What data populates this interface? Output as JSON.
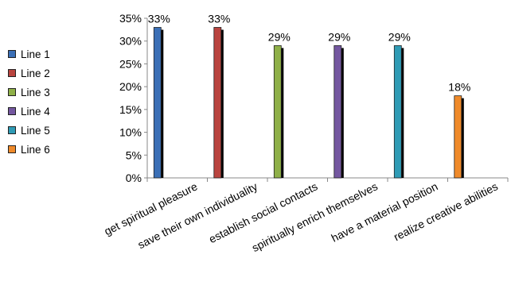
{
  "chart_data": {
    "type": "bar",
    "categories": [
      "get spiritual pleasure",
      "save their own individuality",
      "establish social contacts",
      "spiritually enrich themselves",
      "have a material position",
      "realize creative abilities"
    ],
    "series": [
      {
        "name": "Line 1",
        "color": "#3b6fb6",
        "values": [
          33,
          null,
          null,
          null,
          null,
          null
        ]
      },
      {
        "name": "Line 2",
        "color": "#b9443f",
        "values": [
          null,
          33,
          null,
          null,
          null,
          null
        ]
      },
      {
        "name": "Line 3",
        "color": "#8fb048",
        "values": [
          null,
          null,
          29,
          null,
          null,
          null
        ]
      },
      {
        "name": "Line 4",
        "color": "#7457a0",
        "values": [
          null,
          null,
          null,
          29,
          null,
          null
        ]
      },
      {
        "name": "Line 5",
        "color": "#2f9bb5",
        "values": [
          null,
          null,
          null,
          null,
          29,
          null
        ]
      },
      {
        "name": "Line 6",
        "color": "#ef8a2a",
        "values": [
          null,
          null,
          null,
          null,
          null,
          18
        ]
      }
    ],
    "data_labels": [
      "33%",
      "33%",
      "29%",
      "29%",
      "29%",
      "18%"
    ],
    "ylim": [
      0,
      35
    ],
    "yticks": [
      "0%",
      "5%",
      "10%",
      "15%",
      "20%",
      "25%",
      "30%",
      "35%"
    ],
    "ytick_values": [
      0,
      5,
      10,
      15,
      20,
      25,
      30,
      35
    ],
    "grid": false,
    "legend_position": "left",
    "title": "",
    "xlabel": "",
    "ylabel": ""
  }
}
